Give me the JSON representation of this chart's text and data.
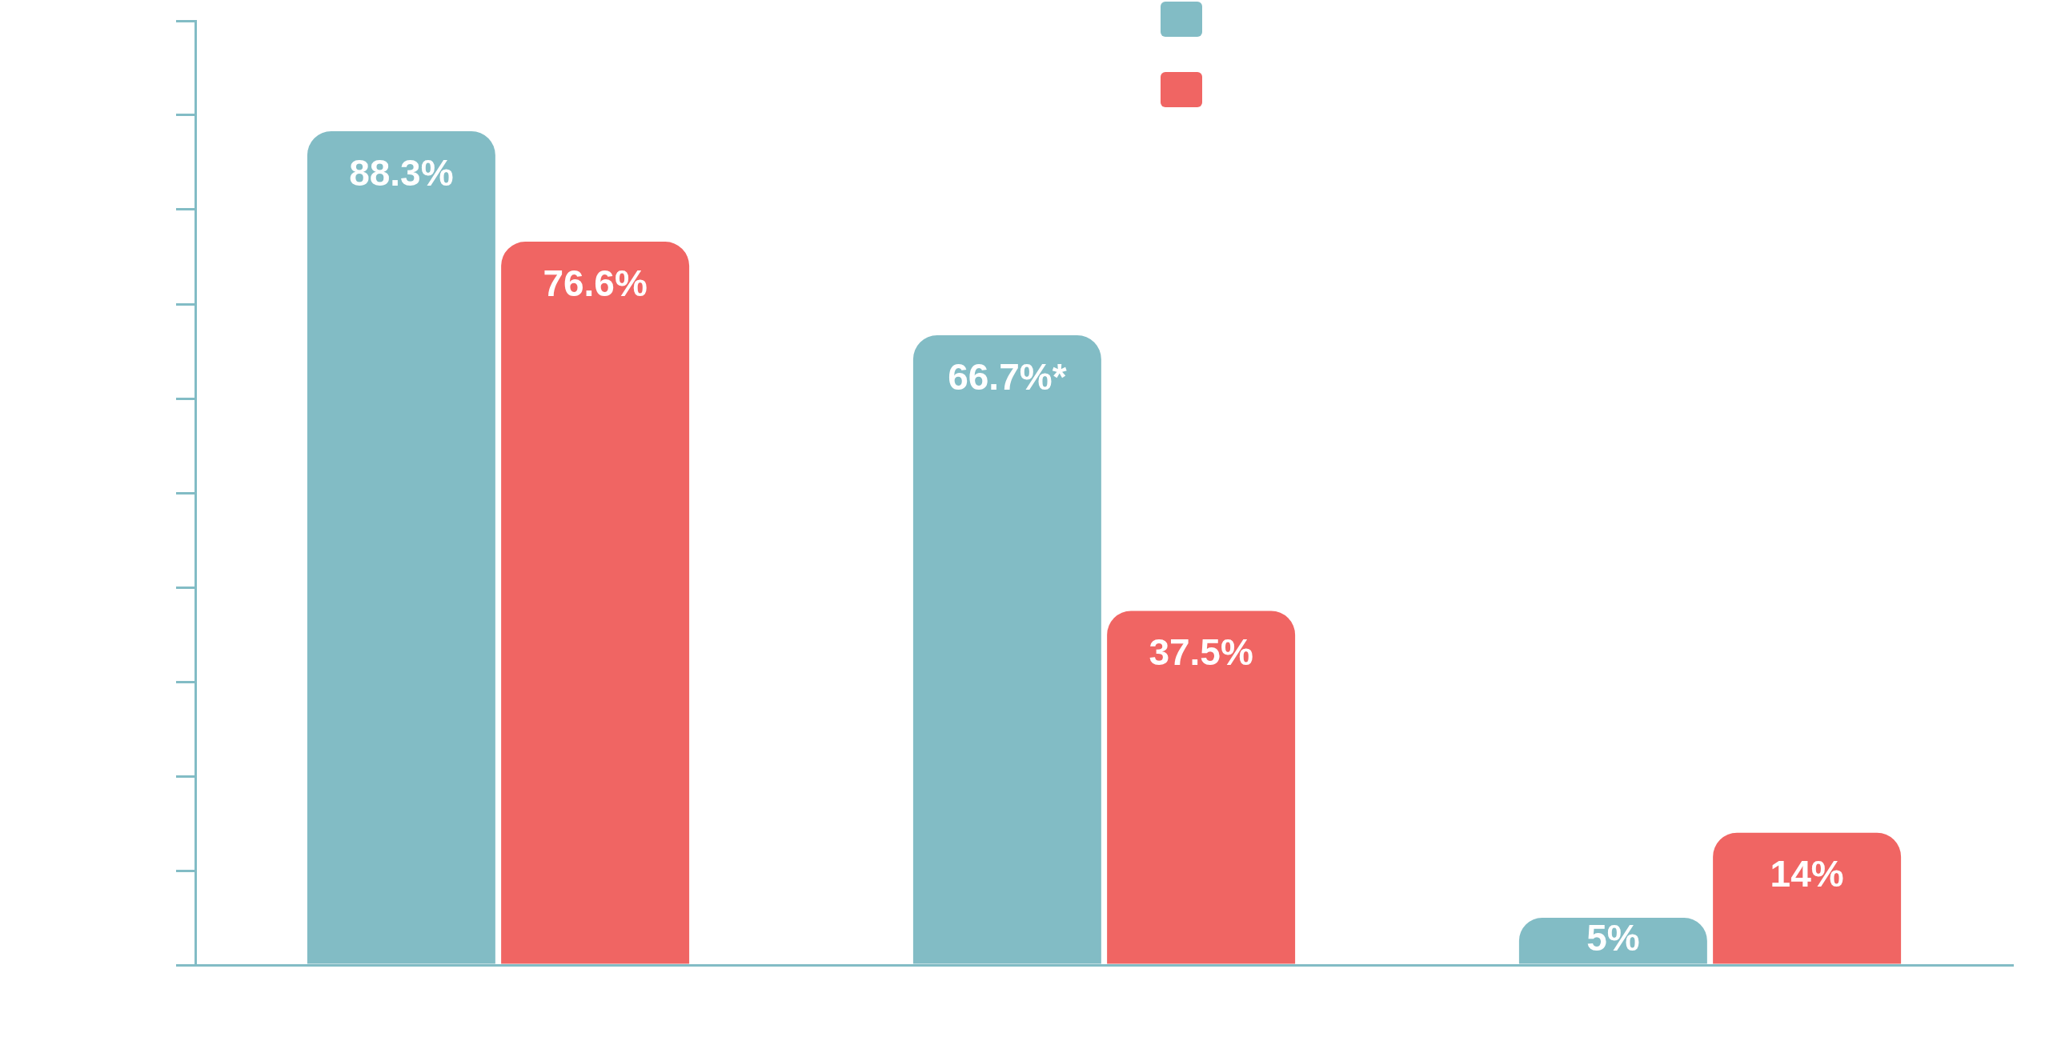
{
  "chart_data": {
    "type": "bar",
    "categories": [
      null,
      null,
      null
    ],
    "series": [
      {
        "color": "#82bcc5",
        "values": [
          88.3,
          66.7,
          5
        ],
        "value_labels": [
          "88.3%",
          "66.7%*",
          "5%"
        ]
      },
      {
        "color": "#f06563",
        "values": [
          76.6,
          37.5,
          14
        ],
        "value_labels": [
          "76.6%",
          "37.5%",
          "14%"
        ]
      }
    ],
    "ylim": [
      0,
      100
    ],
    "tick_labels": false
  }
}
